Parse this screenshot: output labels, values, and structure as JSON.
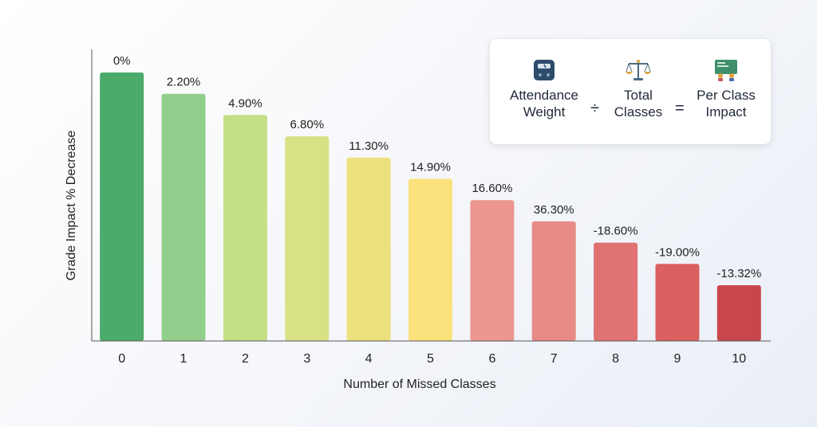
{
  "chart_data": {
    "type": "bar",
    "categories": [
      "0",
      "1",
      "2",
      "3",
      "4",
      "5",
      "6",
      "7",
      "8",
      "9",
      "10"
    ],
    "values": [
      0,
      2.2,
      4.9,
      6.8,
      11.3,
      14.9,
      16.6,
      36.3,
      -18.6,
      -19.0,
      -13.32
    ],
    "data_labels": [
      "0%",
      "2.20%",
      "4.90%",
      "6.80%",
      "11.30%",
      "14.90%",
      "16.60%",
      "36.30%",
      "-18.60%",
      "-19.00%",
      "-13.32%"
    ],
    "title": "",
    "xlabel": "Number of Missed Classes",
    "ylabel": "Grade Impact % Decrease",
    "grid": false,
    "colors": [
      "#4caa6a",
      "#92cf8c",
      "#c5df86",
      "#d9e187",
      "#ede07f",
      "#fbe27c",
      "#ec9690",
      "#e88a86",
      "#e07272",
      "#d9605f",
      "#c9474a"
    ]
  },
  "formula": {
    "terms": [
      {
        "icon": "scale-weight-icon",
        "line1": "Attendance",
        "line2": "Weight"
      },
      {
        "icon": "balance-scale-icon",
        "line1": "Total",
        "line2": "Classes"
      },
      {
        "icon": "classroom-icon",
        "line1": "Per Class",
        "line2": "Impact"
      }
    ],
    "op1": "÷",
    "op2": "="
  }
}
